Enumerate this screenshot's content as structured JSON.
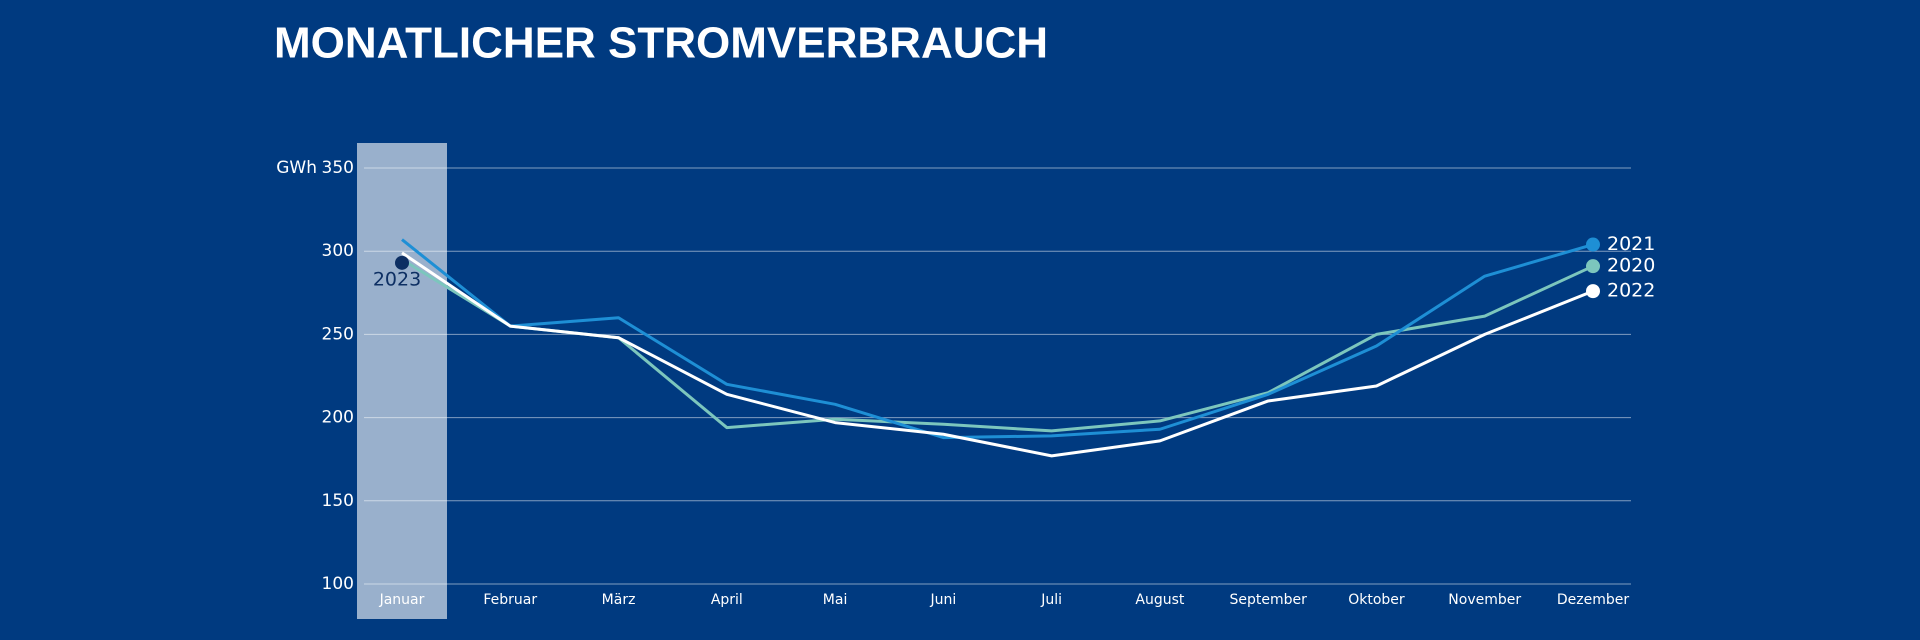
{
  "chart_data": {
    "type": "line",
    "title": "MONATLICHER STROMVERBRAUCH",
    "y_label": "GWh",
    "categories": [
      "Januar",
      "Februar",
      "März",
      "April",
      "Mai",
      "Juni",
      "Juli",
      "August",
      "September",
      "Oktober",
      "November",
      "Dezember"
    ],
    "series": [
      {
        "name": "2020",
        "color": "#7cc6bd",
        "values": [
          295,
          255,
          248,
          194,
          199,
          196,
          192,
          198,
          215,
          250,
          261,
          291
        ]
      },
      {
        "name": "2021",
        "color": "#1e8fd5",
        "values": [
          307,
          255,
          260,
          220,
          208,
          188,
          189,
          193,
          214,
          243,
          285,
          304
        ]
      },
      {
        "name": "2022",
        "color": "#ffffff",
        "values": [
          299,
          255,
          248,
          214,
          197,
          190,
          177,
          186,
          210,
          219,
          250,
          276
        ]
      },
      {
        "name": "2023",
        "color": "#0d2f63",
        "values": [
          293,
          null,
          null,
          null,
          null,
          null,
          null,
          null,
          null,
          null,
          null,
          null
        ]
      }
    ],
    "ylim": [
      100,
      350
    ],
    "yticks": [
      100,
      150,
      200,
      250,
      300,
      350
    ],
    "grid": true,
    "highlight": "Januar"
  }
}
